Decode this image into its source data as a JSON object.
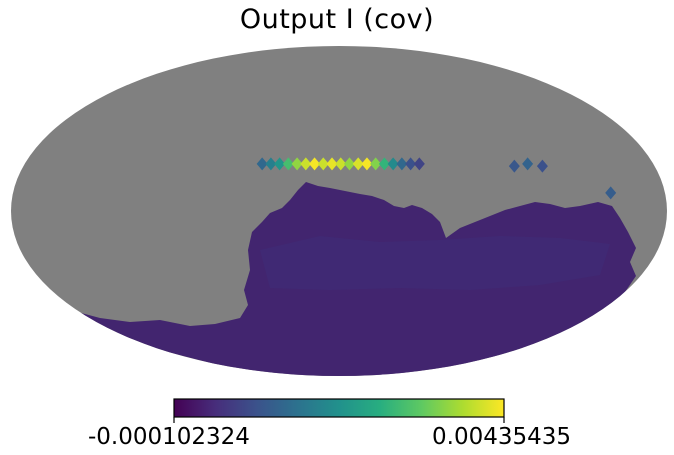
{
  "chart_data": {
    "type": "heatmap",
    "projection": "mollweide",
    "title": "Output I (cov)",
    "colormap": "viridis",
    "colorbar": {
      "min": -0.000102324,
      "max": 0.00435435,
      "min_label": "-0.000102324",
      "max_label": "0.00435435",
      "orientation": "horizontal",
      "placement": "bottom"
    },
    "unseen_color": "#808080",
    "background_value": 0.00015,
    "hot_pixels": [
      {
        "lon": -44,
        "lat": 21,
        "value": 0.0014
      },
      {
        "lon": -39,
        "lat": 21,
        "value": 0.0018
      },
      {
        "lon": -34,
        "lat": 21,
        "value": 0.0022
      },
      {
        "lon": -29,
        "lat": 21,
        "value": 0.003
      },
      {
        "lon": -24,
        "lat": 21,
        "value": 0.0036
      },
      {
        "lon": -19,
        "lat": 21,
        "value": 0.004
      },
      {
        "lon": -14,
        "lat": 21,
        "value": 0.0043
      },
      {
        "lon": -9,
        "lat": 21,
        "value": 0.004
      },
      {
        "lon": -4,
        "lat": 21,
        "value": 0.0042
      },
      {
        "lon": 1,
        "lat": 21,
        "value": 0.004
      },
      {
        "lon": 6,
        "lat": 21,
        "value": 0.0036
      },
      {
        "lon": 11,
        "lat": 21,
        "value": 0.0041
      },
      {
        "lon": 16,
        "lat": 21,
        "value": 0.0043
      },
      {
        "lon": 21,
        "lat": 21,
        "value": 0.0035
      },
      {
        "lon": 26,
        "lat": 21,
        "value": 0.0028
      },
      {
        "lon": 31,
        "lat": 21,
        "value": 0.002
      },
      {
        "lon": 36,
        "lat": 21,
        "value": 0.0014
      },
      {
        "lon": 41,
        "lat": 21,
        "value": 0.001
      },
      {
        "lon": 46,
        "lat": 21,
        "value": 0.0008
      },
      {
        "lon": 100,
        "lat": 20,
        "value": 0.0011
      },
      {
        "lon": 108,
        "lat": 21,
        "value": 0.0013
      },
      {
        "lon": 116,
        "lat": 20,
        "value": 0.001
      },
      {
        "lon": 150,
        "lat": 8,
        "value": 0.0012
      }
    ]
  }
}
